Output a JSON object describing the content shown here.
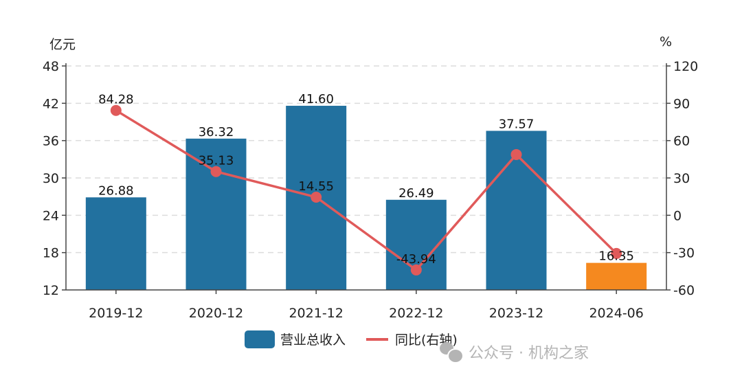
{
  "chart_data": {
    "type": "bar+line",
    "categories": [
      "2019-12",
      "2020-12",
      "2021-12",
      "2022-12",
      "2023-12",
      "2024-06"
    ],
    "left_axis": {
      "unit": "亿元",
      "ylim": [
        12,
        48
      ],
      "ticks": [
        "48",
        "42",
        "36",
        "30",
        "24",
        "18",
        "12"
      ]
    },
    "right_axis": {
      "unit": "%",
      "ylim": [
        -60,
        120
      ],
      "ticks": [
        "120",
        "90",
        "60",
        "30",
        "0",
        "-30",
        "-60"
      ]
    },
    "grid": "horizontal dashed",
    "legend_position": "bottom",
    "series": [
      {
        "name": "营业总收入",
        "type": "bar",
        "axis": "left",
        "values": [
          26.88,
          36.32,
          41.6,
          26.49,
          37.57,
          16.35
        ],
        "labels": [
          "26.88",
          "36.32",
          "41.60",
          "26.49",
          "37.57",
          "16.35"
        ],
        "colors": [
          "#22719f",
          "#22719f",
          "#22719f",
          "#22719f",
          "#22719f",
          "#f5891f"
        ]
      },
      {
        "name": "同比(右轴)",
        "type": "line",
        "axis": "right",
        "values": [
          84.28,
          35.13,
          14.55,
          -43.94,
          48.8,
          -30.7
        ],
        "labels": [
          "84.28",
          "35.13",
          "14.55",
          "-43.94",
          "",
          ""
        ],
        "color": "#e05a5a"
      }
    ]
  },
  "watermark": "公众号 · 机构之家"
}
